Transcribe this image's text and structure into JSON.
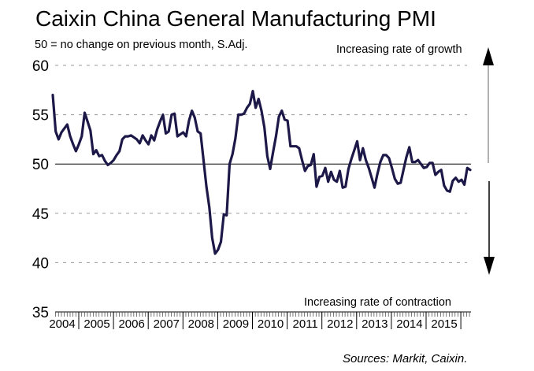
{
  "chart_data": {
    "type": "line",
    "title": "Caixin China General Manufacturing PMI",
    "subtitle": "50 = no change on previous month, S.Adj.",
    "xlabel": "",
    "ylabel": "",
    "ylim": [
      35,
      60
    ],
    "yticks": [
      60,
      55,
      50,
      45,
      40,
      35
    ],
    "grid": true,
    "reference_line": 50,
    "x_tick_labels": [
      "2004",
      "2005",
      "2006",
      "2007",
      "2008",
      "2009",
      "2010",
      "2011",
      "2012",
      "2013",
      "2014",
      "2015"
    ],
    "series_start": "Apr 2004",
    "frequency": "monthly",
    "annotations": {
      "up": "Increasing rate of growth",
      "down": "Increasing rate of contraction"
    },
    "source": "Sources: Markit, Caixin.",
    "series": [
      {
        "name": "Caixin China General Manufacturing PMI",
        "color": "#1c1848",
        "values": [
          57.0,
          53.3,
          52.5,
          53.2,
          53.6,
          54.0,
          52.8,
          52.0,
          51.3,
          52.0,
          52.8,
          55.2,
          54.3,
          53.4,
          51.0,
          51.4,
          50.8,
          50.9,
          50.3,
          49.9,
          50.1,
          50.4,
          50.9,
          51.3,
          52.5,
          52.8,
          52.8,
          52.9,
          52.7,
          52.5,
          52.1,
          52.9,
          52.4,
          52.0,
          52.9,
          52.4,
          53.5,
          54.3,
          55.0,
          53.1,
          53.3,
          55.0,
          55.1,
          52.8,
          53.0,
          53.2,
          52.8,
          54.4,
          55.4,
          54.7,
          53.3,
          53.1,
          50.4,
          47.7,
          45.6,
          42.5,
          40.9,
          41.3,
          42.1,
          44.9,
          44.8,
          50.0,
          51.0,
          52.6,
          55.0,
          55.0,
          55.1,
          55.7,
          56.1,
          57.4,
          55.7,
          56.6,
          55.4,
          53.7,
          50.8,
          49.5,
          51.2,
          52.8,
          54.8,
          55.4,
          54.5,
          54.4,
          51.8,
          51.8,
          51.8,
          51.6,
          50.4,
          49.3,
          49.8,
          49.9,
          51.0,
          47.7,
          48.7,
          48.8,
          49.6,
          48.2,
          49.2,
          48.4,
          48.2,
          49.3,
          47.6,
          47.7,
          49.5,
          50.5,
          51.4,
          52.3,
          50.4,
          51.6,
          50.4,
          49.6,
          48.6,
          47.6,
          49.0,
          50.2,
          50.9,
          50.9,
          50.6,
          49.6,
          48.5,
          48.0,
          48.1,
          49.4,
          50.7,
          51.7,
          50.2,
          50.2,
          50.4,
          50.0,
          49.6,
          49.7,
          50.1,
          50.1,
          48.9,
          49.2,
          49.4,
          47.8,
          47.3,
          47.2,
          48.3,
          48.6,
          48.2,
          48.4,
          47.9,
          49.6,
          49.4
        ]
      }
    ]
  }
}
